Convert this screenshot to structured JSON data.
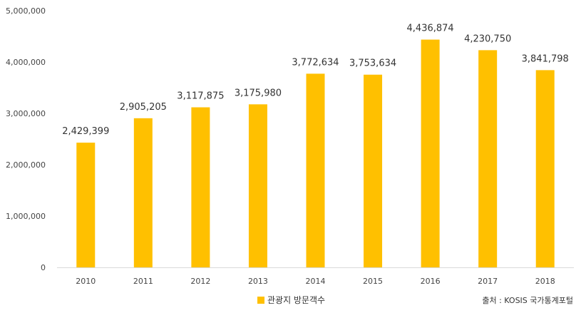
{
  "chart_data": {
    "type": "bar",
    "categories": [
      "2010",
      "2011",
      "2012",
      "2013",
      "2014",
      "2015",
      "2016",
      "2017",
      "2018"
    ],
    "values": [
      2429399,
      2905205,
      3117875,
      3175980,
      3772634,
      3753634,
      4436874,
      4230750,
      3841798
    ],
    "value_labels": [
      "2,429,399",
      "2,905,205",
      "3,117,875",
      "3,175,980",
      "3,772,634",
      "3,753,634",
      "4,436,874",
      "4,230,750",
      "3,841,798"
    ],
    "series": [
      {
        "name": "관광지 방문객수",
        "color": "#FFC000"
      }
    ],
    "ylim": [
      0,
      5000000
    ],
    "yticks": [
      0,
      1000000,
      2000000,
      3000000,
      4000000,
      5000000
    ],
    "ytick_labels": [
      "0",
      "1,000,000",
      "2,000,000",
      "3,000,000",
      "4,000,000",
      "5,000,000"
    ],
    "grid": false,
    "legend_position": "bottom",
    "source": "출처 : KOSIS 국가통계포털"
  }
}
